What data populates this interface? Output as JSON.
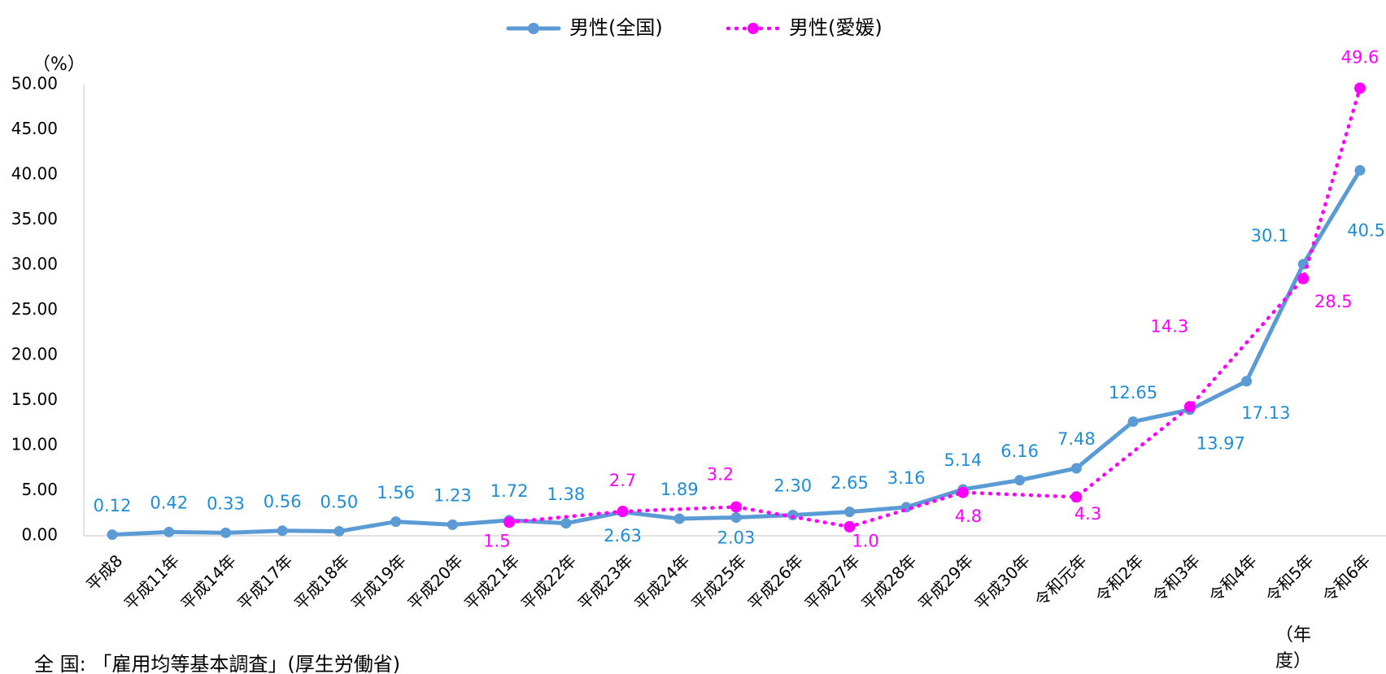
{
  "chart_data": {
    "type": "line",
    "y_unit_label": "（%）",
    "x_unit_label": "（年度）",
    "source_note": "全 国: 「雇用均等基本調査」(厚生労働省)",
    "categories": [
      "平成8",
      "平成11年",
      "平成14年",
      "平成17年",
      "平成18年",
      "平成19年",
      "平成20年",
      "平成21年",
      "平成22年",
      "平成23年",
      "平成24年",
      "平成25年",
      "平成26年",
      "平成27年",
      "平成28年",
      "平成29年",
      "平成30年",
      "令和元年",
      "令和2年",
      "令和3年",
      "令和4年",
      "令和5年",
      "令和6年"
    ],
    "series": [
      {
        "name": "男性(全国)",
        "color": "#5b9bd5",
        "label_color": "#1f8dd6",
        "line_style": "solid",
        "values": [
          0.12,
          0.42,
          0.33,
          0.56,
          0.5,
          1.56,
          1.23,
          1.72,
          1.38,
          2.63,
          1.89,
          2.03,
          2.3,
          2.65,
          3.16,
          5.14,
          6.16,
          7.48,
          12.65,
          13.97,
          17.13,
          30.1,
          40.5
        ],
        "value_labels": [
          "0.12",
          "0.42",
          "0.33",
          "0.56",
          "0.50",
          "1.56",
          "1.23",
          "1.72",
          "1.38",
          "2.63",
          "1.89",
          "2.03",
          "2.30",
          "2.65",
          "3.16",
          "5.14",
          "6.16",
          "7.48",
          "12.65",
          "13.97",
          "17.13",
          "30.1",
          "40.5"
        ]
      },
      {
        "name": "男性(愛媛)",
        "color": "#ff00ff",
        "label_color": "#ff00ff",
        "line_style": "dotted",
        "connect_gaps": true,
        "values": [
          null,
          null,
          null,
          null,
          null,
          null,
          null,
          1.5,
          null,
          2.7,
          null,
          3.2,
          null,
          1.0,
          null,
          4.8,
          null,
          4.3,
          null,
          14.3,
          null,
          28.5,
          49.6
        ],
        "value_labels": [
          null,
          null,
          null,
          null,
          null,
          null,
          null,
          "1.5",
          null,
          "2.7",
          null,
          "3.2",
          null,
          "1.0",
          null,
          "4.8",
          null,
          "4.3",
          null,
          "14.3",
          null,
          "28.5",
          "49.6"
        ]
      }
    ],
    "ylim": [
      0,
      50
    ],
    "yticks": [
      {
        "value": 0,
        "label": "0.00"
      },
      {
        "value": 5,
        "label": "5.00"
      },
      {
        "value": 10,
        "label": "10.00"
      },
      {
        "value": 15,
        "label": "15.00"
      },
      {
        "value": 20,
        "label": "20.00"
      },
      {
        "value": 25,
        "label": "25.00"
      },
      {
        "value": 30,
        "label": "30.00"
      },
      {
        "value": 35,
        "label": "35.00"
      },
      {
        "value": 40,
        "label": "40.00"
      },
      {
        "value": 45,
        "label": "45.00"
      },
      {
        "value": 50,
        "label": "50.00"
      }
    ],
    "legend": "top"
  }
}
